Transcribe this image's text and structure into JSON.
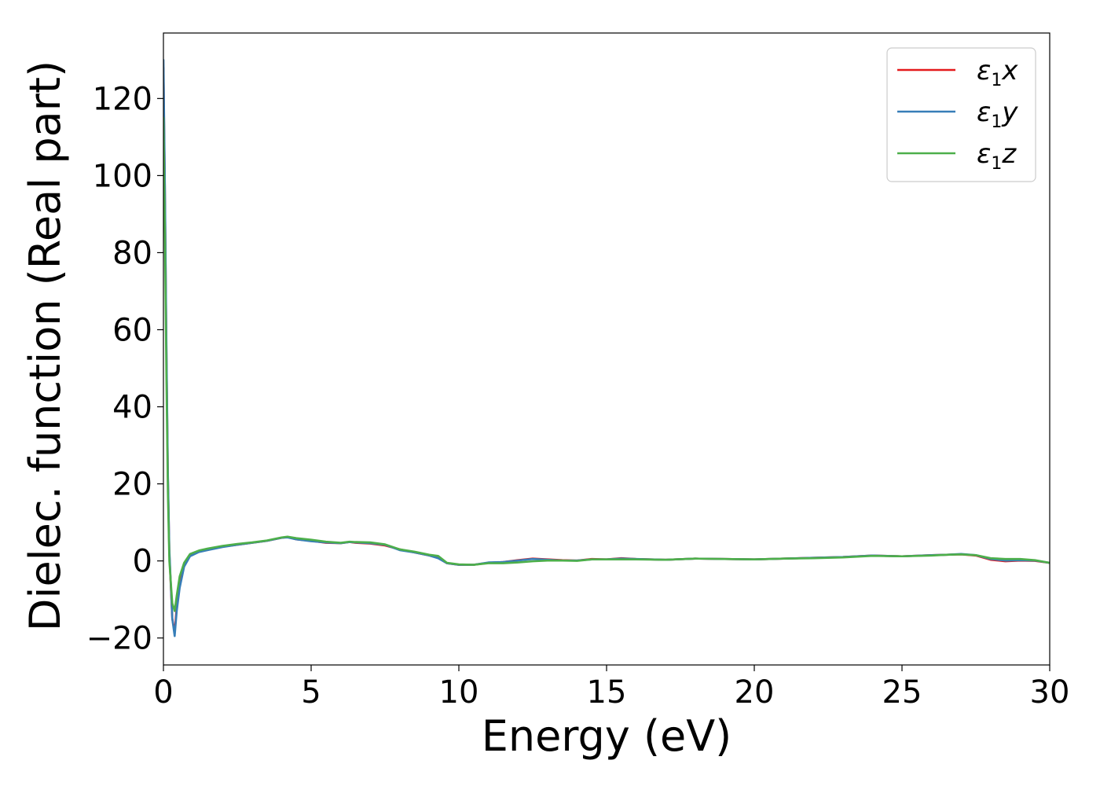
{
  "chart_data": {
    "type": "line",
    "title": "",
    "xlabel": "Energy (eV)",
    "ylabel": "Dielec. function (Real part)",
    "xlim": [
      0,
      30
    ],
    "ylim": [
      -27,
      137
    ],
    "xticks": [
      0,
      5,
      10,
      15,
      20,
      25,
      30
    ],
    "yticks": [
      -20,
      0,
      20,
      40,
      60,
      80,
      100,
      120
    ],
    "xtick_labels": [
      "0",
      "5",
      "10",
      "15",
      "20",
      "25",
      "30"
    ],
    "ytick_labels": [
      "−20",
      "0",
      "20",
      "40",
      "60",
      "80",
      "100",
      "120"
    ],
    "grid": false,
    "legend_position": "top-right",
    "series": [
      {
        "name": "ε₁x",
        "legend_base": "ε",
        "legend_sub": "1",
        "legend_var": "x",
        "color": "#e41a1c",
        "x": [
          0,
          0.05,
          0.1,
          0.15,
          0.2,
          0.3,
          0.38,
          0.45,
          0.55,
          0.7,
          0.9,
          1.2,
          1.5,
          2,
          2.5,
          3,
          3.5,
          4,
          4.2,
          4.5,
          5,
          5.5,
          6,
          6.3,
          6.5,
          7,
          7.5,
          8,
          8.5,
          9,
          9.3,
          9.6,
          10,
          10.5,
          11,
          11.5,
          12,
          12.5,
          13,
          13.5,
          14,
          14.5,
          15,
          15.5,
          16,
          17,
          18,
          19,
          20,
          21,
          22,
          23,
          24,
          25,
          26,
          26.5,
          27,
          27.5,
          28,
          28.5,
          29,
          29.5,
          30
        ],
        "y": [
          128,
          95,
          55,
          22,
          2,
          -15,
          -18.5,
          -12,
          -6,
          -1,
          1.5,
          2.5,
          3,
          3.7,
          4.2,
          4.7,
          5.2,
          6,
          6.2,
          5.6,
          5.2,
          4.7,
          4.6,
          4.9,
          4.7,
          4.5,
          4,
          3,
          2.2,
          1.4,
          0.8,
          -0.6,
          -1.0,
          -1.0,
          -0.5,
          -0.3,
          0.2,
          0.6,
          0.4,
          0.2,
          0.1,
          0.5,
          0.4,
          0.7,
          0.5,
          0.3,
          0.6,
          0.5,
          0.4,
          0.6,
          0.8,
          1.0,
          1.4,
          1.2,
          1.5,
          1.6,
          1.7,
          1.4,
          0.3,
          -0.1,
          0.1,
          0.0,
          -0.5
        ]
      },
      {
        "name": "ε₁y",
        "legend_base": "ε",
        "legend_sub": "1",
        "legend_var": "y",
        "color": "#377eb8",
        "x": [
          0,
          0.05,
          0.1,
          0.15,
          0.2,
          0.3,
          0.38,
          0.45,
          0.55,
          0.7,
          0.9,
          1.2,
          1.5,
          2,
          2.5,
          3,
          3.5,
          4,
          4.2,
          4.5,
          5,
          5.5,
          6,
          6.3,
          6.5,
          7,
          7.5,
          8,
          8.5,
          9,
          9.3,
          9.6,
          10,
          10.5,
          11,
          11.5,
          12,
          12.5,
          13,
          13.5,
          14,
          14.5,
          15,
          15.5,
          16,
          17,
          18,
          19,
          20,
          21,
          22,
          23,
          24,
          25,
          26,
          26.5,
          27,
          27.5,
          28,
          28.5,
          29,
          29.5,
          30
        ],
        "y": [
          130,
          97,
          57,
          23,
          3,
          -15,
          -19.5,
          -13,
          -7,
          -1.5,
          1.2,
          2.3,
          2.8,
          3.6,
          4.2,
          4.7,
          5.2,
          6,
          6.1,
          5.6,
          5.1,
          4.8,
          4.6,
          4.9,
          4.8,
          4.6,
          4.2,
          2.8,
          2.2,
          1.4,
          0.7,
          -0.6,
          -1.0,
          -1.0,
          -0.4,
          -0.3,
          0.1,
          0.5,
          0.3,
          0.1,
          0.1,
          0.4,
          0.4,
          0.6,
          0.5,
          0.3,
          0.6,
          0.5,
          0.4,
          0.6,
          0.8,
          1.0,
          1.4,
          1.2,
          1.5,
          1.6,
          1.8,
          1.5,
          0.5,
          0.1,
          0.2,
          0.1,
          -0.5
        ]
      },
      {
        "name": "ε₁z",
        "legend_base": "ε",
        "legend_sub": "1",
        "legend_var": "z",
        "color": "#4daf4a",
        "x": [
          0,
          0.05,
          0.1,
          0.15,
          0.2,
          0.3,
          0.38,
          0.45,
          0.55,
          0.7,
          0.9,
          1.2,
          1.5,
          2,
          2.5,
          3,
          3.5,
          4,
          4.2,
          4.5,
          5,
          5.5,
          6,
          6.3,
          6.5,
          7,
          7.5,
          8,
          8.5,
          9,
          9.3,
          9.6,
          10,
          10.5,
          11,
          11.5,
          12,
          12.5,
          13,
          13.5,
          14,
          14.5,
          15,
          15.5,
          16,
          17,
          18,
          19,
          20,
          21,
          22,
          23,
          24,
          25,
          26,
          26.5,
          27,
          27.5,
          28,
          28.5,
          29,
          29.5,
          30
        ],
        "y": [
          115,
          85,
          48,
          18,
          0,
          -11,
          -13,
          -9,
          -4,
          -0.5,
          1.8,
          2.7,
          3.2,
          3.9,
          4.4,
          4.8,
          5.3,
          6.1,
          6.3,
          5.9,
          5.5,
          5.0,
          4.7,
          5.0,
          4.9,
          4.8,
          4.3,
          3.0,
          2.4,
          1.6,
          1.3,
          -0.5,
          -0.9,
          -1.0,
          -0.6,
          -0.6,
          -0.4,
          -0.1,
          0.1,
          0.1,
          0.0,
          0.4,
          0.4,
          0.4,
          0.4,
          0.3,
          0.6,
          0.5,
          0.4,
          0.6,
          0.7,
          0.9,
          1.3,
          1.2,
          1.4,
          1.6,
          1.7,
          1.5,
          0.7,
          0.5,
          0.5,
          0.2,
          -0.5
        ]
      }
    ]
  }
}
